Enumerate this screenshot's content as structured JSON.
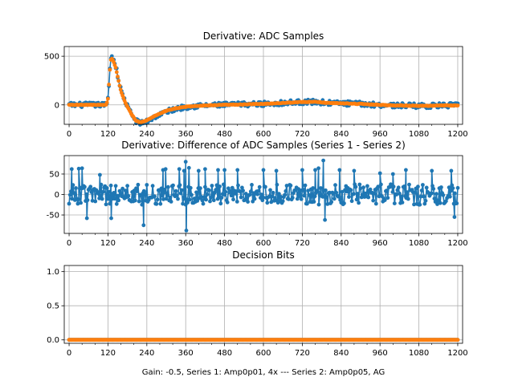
{
  "chart_data": [
    {
      "type": "line",
      "title": "Derivative: ADC Samples",
      "xlabel": "",
      "ylabel": "",
      "xlim": [
        -15,
        1215
      ],
      "ylim": [
        -200,
        600
      ],
      "xticks": [
        0,
        120,
        240,
        360,
        480,
        600,
        720,
        840,
        960,
        1080,
        1200
      ],
      "yticks": [
        0,
        500
      ],
      "grid": true,
      "series": [
        {
          "name": "Series 1",
          "color": "#1f77b4",
          "style": "stem-dots",
          "noise": 25,
          "x": [
            0,
            100,
            115,
            120,
            128,
            133,
            138,
            145,
            150,
            160,
            175,
            190,
            205,
            220,
            240,
            260,
            280,
            300,
            330,
            360,
            400,
            480,
            600,
            660,
            720,
            760,
            800,
            900,
            960,
            1000,
            1080,
            1200
          ],
          "y": [
            0,
            0,
            0,
            60,
            480,
            500,
            460,
            390,
            300,
            150,
            20,
            -80,
            -160,
            -190,
            -170,
            -130,
            -100,
            -70,
            -40,
            -20,
            -10,
            0,
            10,
            20,
            30,
            30,
            20,
            10,
            0,
            -5,
            -10,
            -5
          ]
        },
        {
          "name": "Series 2",
          "color": "#ff7f0e",
          "style": "dots",
          "noise": 3,
          "x": [
            0,
            100,
            115,
            120,
            128,
            133,
            138,
            145,
            150,
            160,
            175,
            190,
            205,
            220,
            240,
            260,
            280,
            300,
            330,
            360,
            400,
            480,
            600,
            660,
            720,
            760,
            800,
            900,
            960,
            1000,
            1080,
            1200
          ],
          "y": [
            0,
            0,
            0,
            60,
            460,
            480,
            440,
            370,
            290,
            140,
            10,
            -80,
            -160,
            -180,
            -160,
            -120,
            -90,
            -60,
            -35,
            -20,
            -10,
            0,
            10,
            20,
            30,
            30,
            20,
            10,
            0,
            -5,
            -10,
            -5
          ]
        }
      ]
    },
    {
      "type": "line",
      "title": "Derivative: Difference of ADC Samples (Series 1 - Series 2)",
      "xlabel": "",
      "ylabel": "",
      "xlim": [
        -15,
        1215
      ],
      "ylim": [
        -95,
        95
      ],
      "xticks": [
        0,
        120,
        240,
        360,
        480,
        600,
        720,
        840,
        960,
        1080,
        1200
      ],
      "yticks": [
        -50,
        0,
        50
      ],
      "grid": true,
      "series": [
        {
          "name": "Series 1 - Series 2",
          "color": "#1f77b4",
          "style": "stem-dots",
          "noise": 25,
          "x": [
            0,
            1200
          ],
          "y": [
            0,
            0
          ],
          "spikes": [
            [
              8,
              62
            ],
            [
              30,
              63
            ],
            [
              40,
              64
            ],
            [
              55,
              -58
            ],
            [
              95,
              48
            ],
            [
              130,
              -58
            ],
            [
              230,
              -75
            ],
            [
              290,
              60
            ],
            [
              298,
              62
            ],
            [
              340,
              62
            ],
            [
              355,
              58
            ],
            [
              360,
              80
            ],
            [
              362,
              -88
            ],
            [
              370,
              65
            ],
            [
              400,
              58
            ],
            [
              420,
              62
            ],
            [
              460,
              60
            ],
            [
              480,
              60
            ],
            [
              520,
              60
            ],
            [
              600,
              60
            ],
            [
              640,
              58
            ],
            [
              720,
              60
            ],
            [
              760,
              60
            ],
            [
              770,
              64
            ],
            [
              785,
              83
            ],
            [
              790,
              -62
            ],
            [
              835,
              60
            ],
            [
              880,
              58
            ],
            [
              960,
              52
            ],
            [
              1000,
              50
            ],
            [
              1040,
              60
            ],
            [
              1120,
              58
            ],
            [
              1180,
              58
            ],
            [
              1190,
              -55
            ]
          ]
        }
      ]
    },
    {
      "type": "line",
      "title": "Decision Bits",
      "xlabel": "Gain: -0.5, Series 1: Amp0p01, 4x --- Series 2: Amp0p05, AG",
      "ylabel": "",
      "xlim": [
        -15,
        1215
      ],
      "ylim": [
        -0.05,
        1.09
      ],
      "xticks": [
        0,
        120,
        240,
        360,
        480,
        600,
        720,
        840,
        960,
        1080,
        1200
      ],
      "yticks": [
        0.0,
        0.5,
        1.0
      ],
      "grid": true,
      "series": [
        {
          "name": "Series 1",
          "color": "#1f77b4",
          "style": "dots",
          "noise": 0,
          "x": [
            0,
            1200
          ],
          "y": [
            0,
            0
          ]
        },
        {
          "name": "Series 2",
          "color": "#ff7f0e",
          "style": "dots",
          "noise": 0,
          "x": [
            0,
            1200
          ],
          "y": [
            0,
            0
          ]
        }
      ]
    }
  ]
}
